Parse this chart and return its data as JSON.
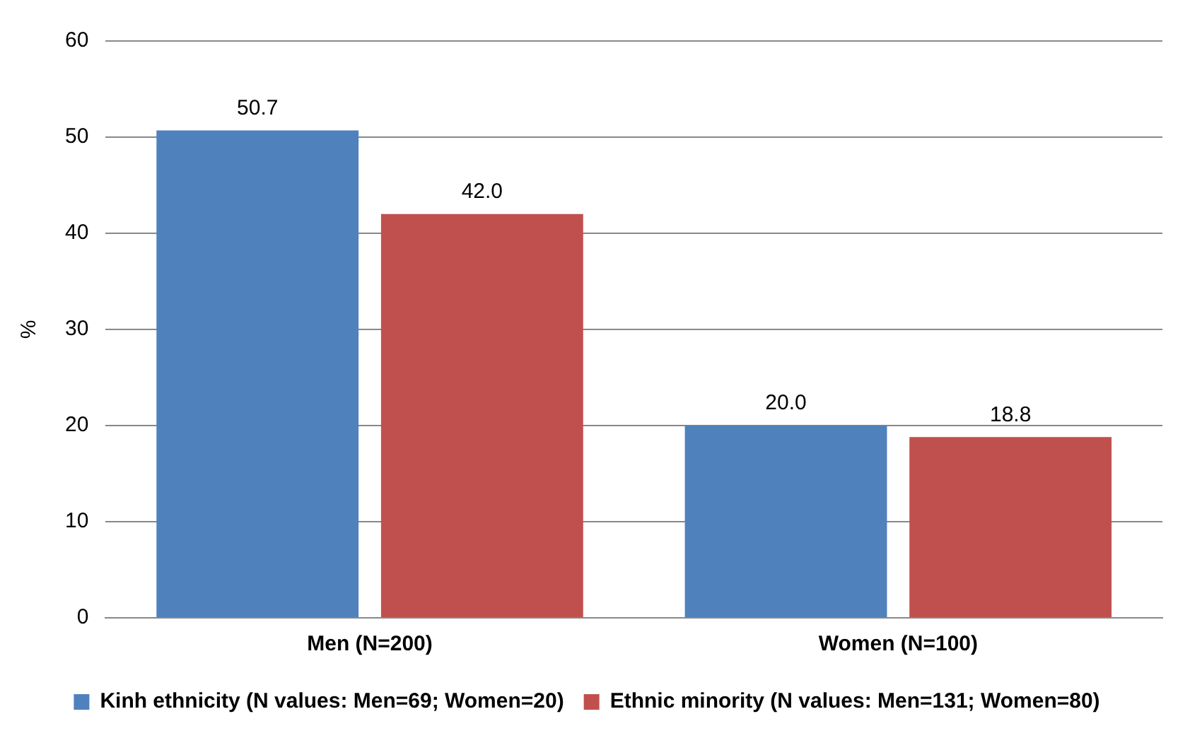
{
  "chart_data": {
    "type": "bar",
    "categories": [
      "Men (N=200)",
      "Women (N=100)"
    ],
    "ylabel": "%",
    "ylim": [
      0,
      60
    ],
    "yticks": [
      0,
      10,
      20,
      30,
      40,
      50,
      60
    ],
    "grid": "y",
    "legend": "bottom",
    "series": [
      {
        "name": "Kinh ethnicity (N values: Men=69; Women=20)",
        "color": "#4f81bd",
        "values": [
          50.7,
          20.0
        ],
        "value_labels": [
          "50.7",
          "20.0"
        ]
      },
      {
        "name": "Ethnic minority (N values: Men=131; Women=80)",
        "color": "#c0504d",
        "values": [
          42.0,
          18.8
        ],
        "value_labels": [
          "42.0",
          "18.8"
        ]
      }
    ]
  }
}
